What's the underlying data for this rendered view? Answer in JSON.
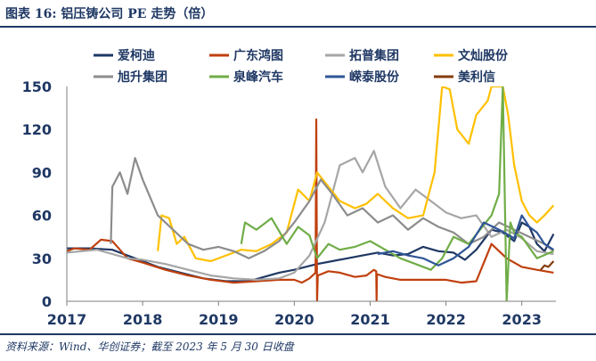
{
  "header": {
    "title": "图表 16:  铝压铸公司 PE 走势（倍）"
  },
  "footer": {
    "source": "资料来源：Wind、华创证券；截至 2023 年 5 月 30 日收盘"
  },
  "chart_data": {
    "type": "line",
    "title": "",
    "xlabel": "",
    "ylabel": "",
    "ylim": [
      0,
      150
    ],
    "yticks": [
      "0",
      "30",
      "60",
      "90",
      "120",
      "150"
    ],
    "xlim": [
      2017.0,
      2023.45
    ],
    "xticks": [
      "2017",
      "2018",
      "2019",
      "2020",
      "2021",
      "2022",
      "2023"
    ],
    "grid": false,
    "legend_position": "top",
    "series": [
      {
        "name": "爱柯迪",
        "color": "#1f3864",
        "x": [
          2017.0,
          2017.3,
          2017.6,
          2017.9,
          2018.2,
          2018.5,
          2018.8,
          2019.1,
          2019.4,
          2019.6,
          2019.8,
          2020.0,
          2020.15,
          2020.3,
          2020.5,
          2020.7,
          2020.9,
          2021.1,
          2021.3,
          2021.5,
          2021.7,
          2021.9,
          2022.1,
          2022.25,
          2022.4,
          2022.6,
          2022.75,
          2022.9,
          2023.0,
          2023.1,
          2023.2,
          2023.3,
          2023.42
        ],
        "y": [
          37,
          37,
          36,
          30,
          24,
          20,
          16,
          14,
          14,
          17,
          20,
          22,
          24,
          26,
          28,
          30,
          32,
          34,
          32,
          33,
          38,
          35,
          34,
          29,
          36,
          50,
          48,
          42,
          55,
          52,
          40,
          35,
          47
        ]
      },
      {
        "name": "广东鸿图",
        "color": "#c0400e",
        "x": [
          2017.0,
          2017.1,
          2017.3,
          2017.45,
          2017.6,
          2017.8,
          2018.0,
          2018.3,
          2018.6,
          2018.9,
          2019.2,
          2019.5,
          2019.8,
          2020.0,
          2020.1,
          2020.2,
          2020.28,
          2020.29,
          2020.3,
          2020.31,
          2020.45,
          2020.6,
          2020.8,
          2020.95,
          2021.05,
          2021.08,
          2021.085,
          2021.09,
          2021.2,
          2021.4,
          2021.6,
          2021.8,
          2022.0,
          2022.2,
          2022.4,
          2022.6,
          2022.8,
          2023.0,
          2023.2,
          2023.42
        ],
        "y": [
          35,
          37,
          36,
          43,
          42,
          30,
          27,
          22,
          18,
          15,
          13,
          14,
          15,
          15,
          13,
          16,
          20,
          127,
          0,
          18,
          21,
          20,
          17,
          18,
          22,
          21,
          0,
          19,
          17,
          15,
          15,
          15,
          15,
          13,
          14,
          40,
          30,
          24,
          22,
          20
        ]
      },
      {
        "name": "拓普集团",
        "color": "#a6a6a6",
        "x": [
          2017.0,
          2017.2,
          2017.4,
          2017.6,
          2017.8,
          2018.0,
          2018.3,
          2018.6,
          2018.9,
          2019.2,
          2019.5,
          2019.8,
          2020.0,
          2020.2,
          2020.4,
          2020.6,
          2020.8,
          2020.9,
          2021.05,
          2021.2,
          2021.4,
          2021.6,
          2021.8,
          2022.0,
          2022.2,
          2022.4,
          2022.6,
          2022.8,
          2023.0,
          2023.2,
          2023.42
        ],
        "y": [
          34,
          35,
          36,
          33,
          30,
          29,
          26,
          22,
          18,
          16,
          15,
          16,
          20,
          32,
          55,
          95,
          100,
          90,
          105,
          80,
          65,
          78,
          70,
          62,
          58,
          60,
          45,
          50,
          44,
          35,
          33
        ]
      },
      {
        "name": "文灿股份",
        "color": "#ffc000",
        "x": [
          2018.2,
          2018.25,
          2018.35,
          2018.45,
          2018.55,
          2018.7,
          2018.9,
          2019.1,
          2019.3,
          2019.5,
          2019.7,
          2019.9,
          2020.05,
          2020.2,
          2020.3,
          2020.45,
          2020.6,
          2020.8,
          2020.95,
          2021.1,
          2021.3,
          2021.5,
          2021.7,
          2021.85,
          2021.95,
          2022.05,
          2022.15,
          2022.3,
          2022.4,
          2022.55,
          2022.6,
          2022.62,
          2022.75,
          2022.82,
          2022.9,
          2023.0,
          2023.1,
          2023.2,
          2023.3,
          2023.42
        ],
        "y": [
          35,
          60,
          58,
          40,
          45,
          30,
          28,
          32,
          36,
          35,
          40,
          48,
          78,
          70,
          90,
          80,
          70,
          65,
          68,
          75,
          65,
          58,
          60,
          90,
          150,
          148,
          120,
          110,
          130,
          140,
          150,
          150,
          150,
          130,
          95,
          70,
          60,
          55,
          60,
          67
        ]
      },
      {
        "name": "旭升集团",
        "color": "#8c8c8c",
        "x": [
          2017.58,
          2017.6,
          2017.7,
          2017.8,
          2017.9,
          2018.0,
          2018.2,
          2018.4,
          2018.6,
          2018.8,
          2019.0,
          2019.2,
          2019.4,
          2019.6,
          2019.8,
          2020.0,
          2020.2,
          2020.35,
          2020.5,
          2020.7,
          2020.9,
          2021.1,
          2021.3,
          2021.5,
          2021.7,
          2021.9,
          2022.1,
          2022.3,
          2022.5,
          2022.7,
          2022.9,
          2023.1,
          2023.3,
          2023.42
        ],
        "y": [
          40,
          80,
          90,
          75,
          100,
          85,
          60,
          50,
          40,
          36,
          38,
          35,
          30,
          35,
          42,
          55,
          70,
          85,
          75,
          60,
          65,
          55,
          60,
          50,
          58,
          52,
          48,
          40,
          45,
          55,
          50,
          45,
          40,
          35
        ]
      },
      {
        "name": "泉峰汽车",
        "color": "#70ad47",
        "x": [
          2019.3,
          2019.35,
          2019.5,
          2019.7,
          2019.9,
          2020.05,
          2020.2,
          2020.3,
          2020.45,
          2020.6,
          2020.8,
          2021.0,
          2021.2,
          2021.4,
          2021.6,
          2021.8,
          2021.95,
          2022.1,
          2022.3,
          2022.45,
          2022.6,
          2022.7,
          2022.75,
          2022.8,
          2022.85,
          2022.9,
          2023.0,
          2023.2,
          2023.42
        ],
        "y": [
          40,
          55,
          50,
          58,
          40,
          52,
          46,
          30,
          40,
          36,
          38,
          42,
          36,
          30,
          26,
          22,
          30,
          45,
          40,
          50,
          60,
          75,
          150,
          0,
          55,
          48,
          45,
          30,
          35
        ]
      },
      {
        "name": "嵘泰股份",
        "color": "#2f5597",
        "x": [
          2021.1,
          2021.3,
          2021.5,
          2021.7,
          2021.9,
          2022.1,
          2022.3,
          2022.5,
          2022.7,
          2022.9,
          2023.0,
          2023.1,
          2023.2,
          2023.3,
          2023.42
        ],
        "y": [
          33,
          35,
          32,
          30,
          25,
          30,
          38,
          55,
          50,
          44,
          60,
          52,
          48,
          40,
          36
        ]
      },
      {
        "name": "美利信",
        "color": "#843c0c",
        "x": [
          2023.25,
          2023.3,
          2023.35,
          2023.42
        ],
        "y": [
          22,
          25,
          24,
          28
        ]
      }
    ]
  }
}
